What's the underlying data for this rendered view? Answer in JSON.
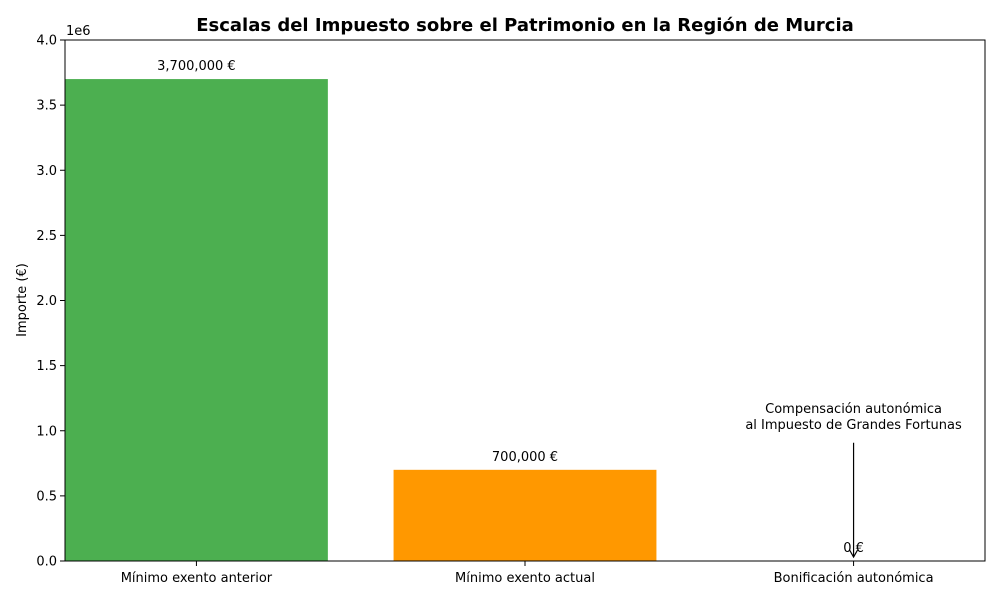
{
  "chart_data": {
    "type": "bar",
    "title": "Escalas del Impuesto sobre el Patrimonio en la Región de Murcia",
    "xlabel": "",
    "ylabel": "Importe (€)",
    "y_scale_label": "1e6",
    "ylim": [
      0,
      4000000
    ],
    "y_ticks": [
      0,
      500000,
      1000000,
      1500000,
      2000000,
      2500000,
      3000000,
      3500000,
      4000000
    ],
    "y_tick_labels": [
      "0.0",
      "0.5",
      "1.0",
      "1.5",
      "2.0",
      "2.5",
      "3.0",
      "3.5",
      "4.0"
    ],
    "categories": [
      "Mínimo exento anterior",
      "Mínimo exento actual",
      "Bonificación autonómica"
    ],
    "values": [
      3700000,
      700000,
      0
    ],
    "value_labels": [
      "3,700,000 €",
      "700,000 €",
      "0 €"
    ],
    "colors": [
      "#4caf50",
      "#ff9800",
      "#2196f3"
    ],
    "annotation": {
      "lines": [
        "Compensación autonómica",
        "al Impuesto de Grandes Fortunas"
      ],
      "target_category_index": 2,
      "text_y": 1000000
    },
    "grid": false,
    "legend": "none"
  }
}
